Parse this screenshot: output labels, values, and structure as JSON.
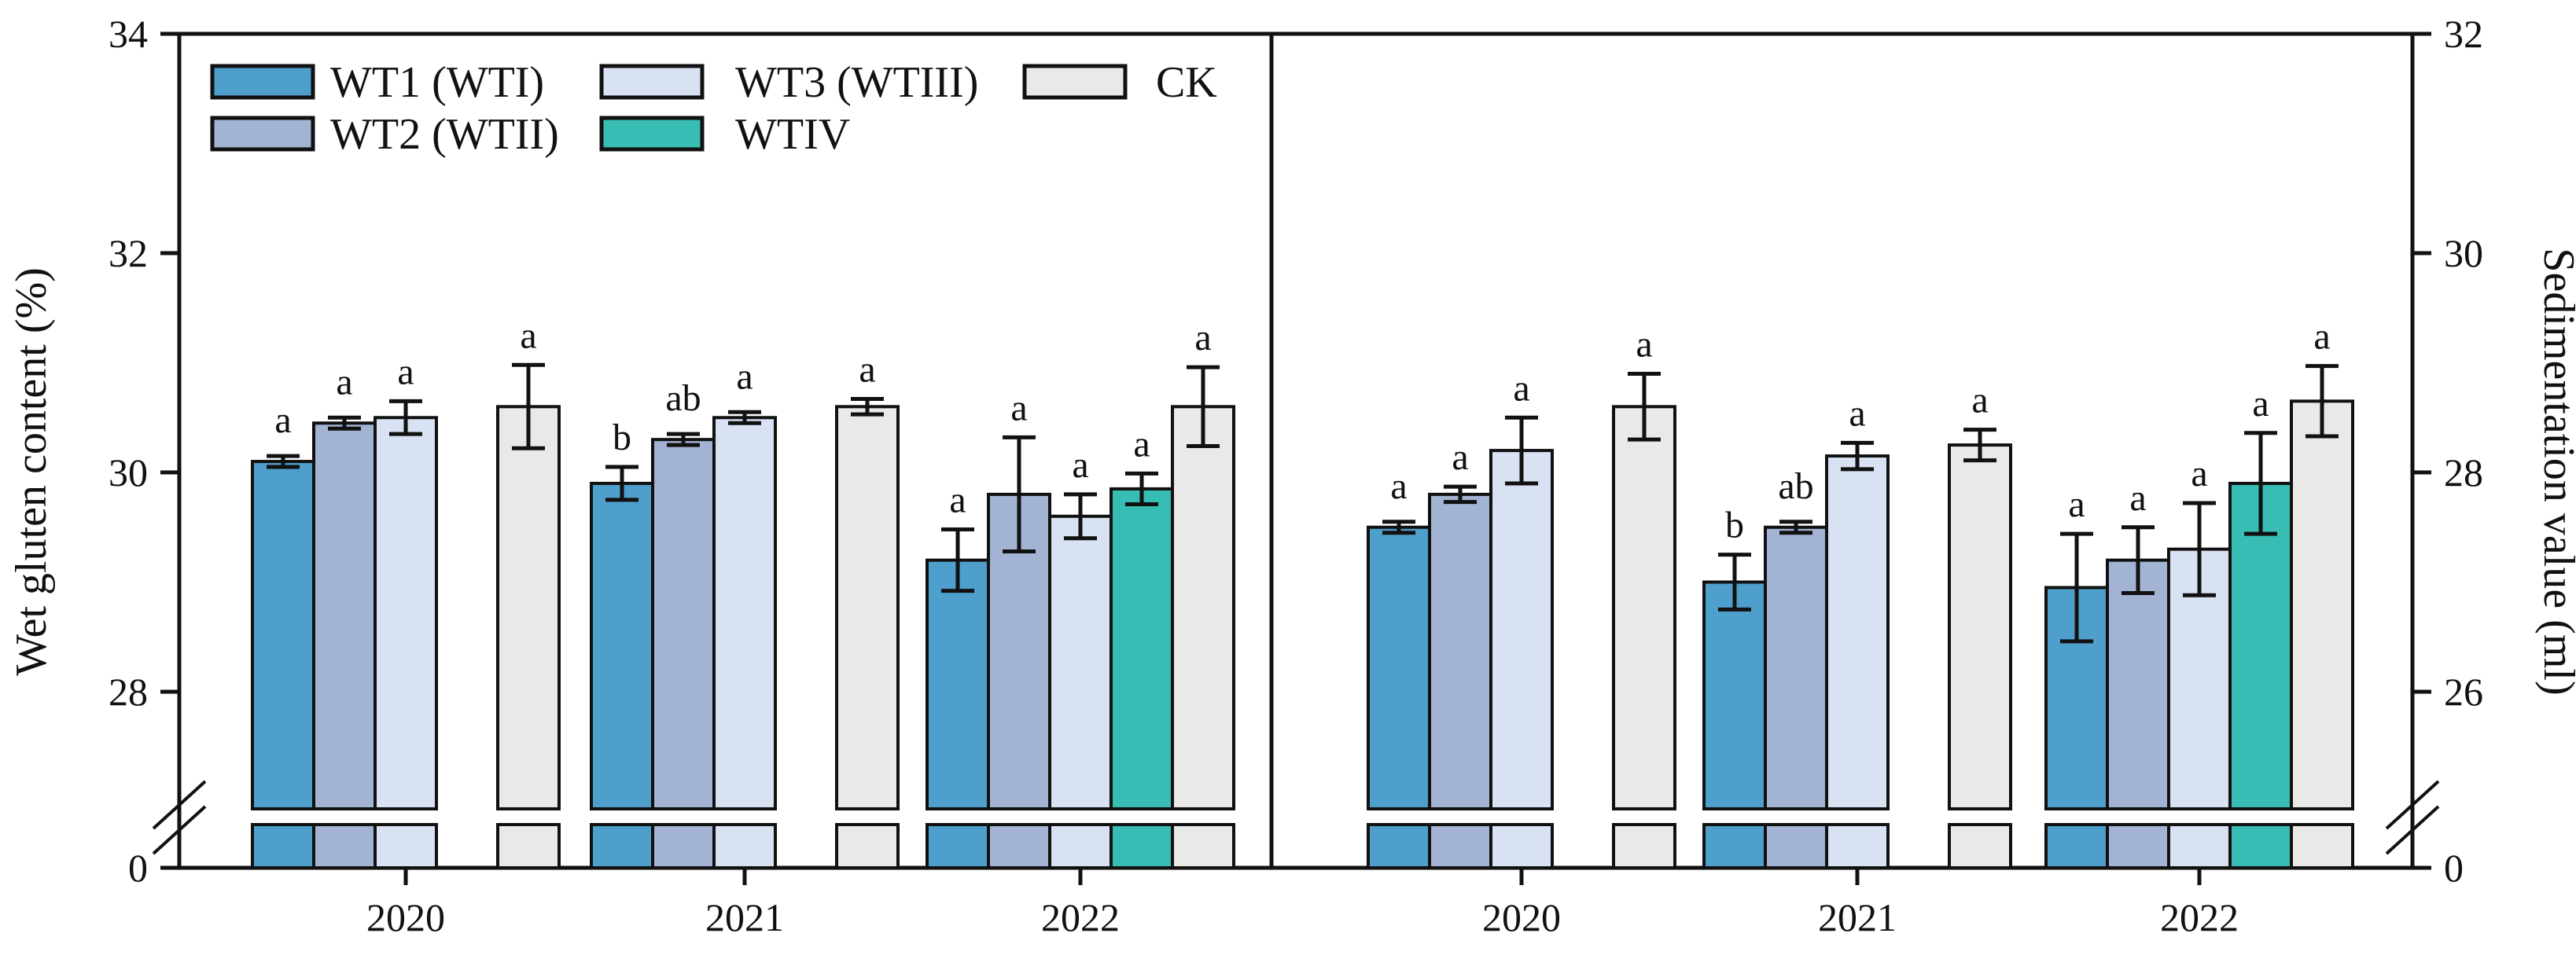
{
  "figure": {
    "left_axis_title": "Wet gluten content (%)",
    "right_axis_title": "Sedimentation value (ml)",
    "zero_label": "0"
  },
  "legend": [
    {
      "label": "WT1 (WTI)",
      "color": "#4F9FCC"
    },
    {
      "label": "WT2 (WTII)",
      "color": "#A2B3D4"
    },
    {
      "label": "WT3 (WTIII)",
      "color": "#D9E2F3"
    },
    {
      "label": "WTIV",
      "color": "#38BDB4"
    },
    {
      "label": "CK",
      "color": "#E9E9E8"
    }
  ],
  "chart_data": [
    {
      "type": "bar",
      "panel": "left",
      "ylabel": "Wet gluten content (%)",
      "axis_side": "left",
      "axis_top_value": 34,
      "axis_ticks": [
        34,
        32,
        30,
        28
      ],
      "axis_zero_label": "0",
      "axis_break": true,
      "categories": [
        "2020",
        "2021",
        "2022"
      ],
      "series": [
        {
          "name": "WT1 (WTI)",
          "color": "#4F9FCC",
          "values": [
            30.1,
            29.9,
            29.2
          ],
          "errors": [
            0.05,
            0.15,
            0.28
          ],
          "letters": [
            "a",
            "b",
            "a"
          ]
        },
        {
          "name": "WT2 (WTII)",
          "color": "#A2B3D4",
          "values": [
            30.45,
            30.3,
            29.8
          ],
          "errors": [
            0.05,
            0.05,
            0.52
          ],
          "letters": [
            "a",
            "ab",
            "a"
          ]
        },
        {
          "name": "WT3 (WTIII)",
          "color": "#D9E2F3",
          "values": [
            30.5,
            30.5,
            29.6
          ],
          "errors": [
            0.15,
            0.05,
            0.2
          ],
          "letters": [
            "a",
            "a",
            "a"
          ]
        },
        {
          "name": "WTIV",
          "color": "#38BDB4",
          "values": [
            null,
            null,
            29.85
          ],
          "errors": [
            null,
            null,
            0.14
          ],
          "letters": [
            "",
            "",
            "a"
          ]
        },
        {
          "name": "CK",
          "color": "#E9E9E8",
          "values": [
            30.6,
            30.6,
            30.6
          ],
          "errors": [
            0.38,
            0.07,
            0.36
          ],
          "letters": [
            "a",
            "a",
            "a"
          ]
        }
      ]
    },
    {
      "type": "bar",
      "panel": "right",
      "ylabel": "Sedimentation value (ml)",
      "axis_side": "right",
      "axis_top_value": 32,
      "axis_ticks": [
        32,
        30,
        28,
        26
      ],
      "axis_zero_label": "0",
      "axis_break": true,
      "categories": [
        "2020",
        "2021",
        "2022"
      ],
      "series": [
        {
          "name": "WT1 (WTI)",
          "color": "#4F9FCC",
          "values": [
            27.5,
            27.0,
            26.95
          ],
          "errors": [
            0.05,
            0.25,
            0.49
          ],
          "letters": [
            "a",
            "b",
            "a"
          ]
        },
        {
          "name": "WT2 (WTII)",
          "color": "#A2B3D4",
          "values": [
            27.8,
            27.5,
            27.2
          ],
          "errors": [
            0.07,
            0.05,
            0.3
          ],
          "letters": [
            "a",
            "ab",
            "a"
          ]
        },
        {
          "name": "WT3 (WTIII)",
          "color": "#D9E2F3",
          "values": [
            28.2,
            28.15,
            27.3
          ],
          "errors": [
            0.3,
            0.12,
            0.42
          ],
          "letters": [
            "a",
            "a",
            "a"
          ]
        },
        {
          "name": "WTIV",
          "color": "#38BDB4",
          "values": [
            null,
            null,
            27.9
          ],
          "errors": [
            null,
            null,
            0.46
          ],
          "letters": [
            "",
            "",
            "a"
          ]
        },
        {
          "name": "CK",
          "color": "#E9E9E8",
          "values": [
            28.6,
            28.25,
            28.65
          ],
          "errors": [
            0.3,
            0.14,
            0.32
          ],
          "letters": [
            "a",
            "a",
            "a"
          ]
        }
      ]
    }
  ]
}
